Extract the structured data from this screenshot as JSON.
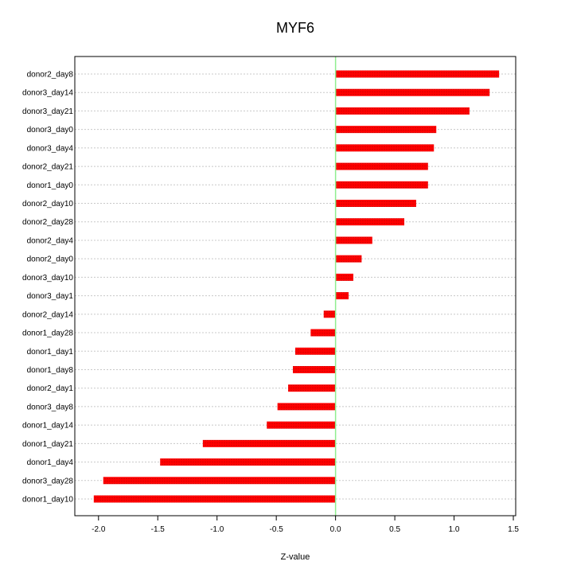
{
  "chart_data": {
    "type": "bar",
    "orientation": "horizontal",
    "title": "MYF6",
    "xlabel": "Z-value",
    "ylabel": "",
    "xlim": [
      -2.2,
      1.52
    ],
    "xticks": [
      -2.0,
      -1.5,
      -1.0,
      -0.5,
      0.0,
      0.5,
      1.0,
      1.5
    ],
    "xtick_labels": [
      "-2.0",
      "-1.5",
      "-1.0",
      "-0.5",
      "0.0",
      "0.5",
      "1.0",
      "1.5"
    ],
    "grid": "horizontal dotted",
    "categories": [
      "donor2_day8",
      "donor3_day14",
      "donor3_day21",
      "donor3_day0",
      "donor3_day4",
      "donor2_day21",
      "donor1_day0",
      "donor2_day10",
      "donor2_day28",
      "donor2_day4",
      "donor2_day0",
      "donor3_day10",
      "donor3_day1",
      "donor2_day14",
      "donor1_day28",
      "donor1_day1",
      "donor1_day8",
      "donor2_day1",
      "donor3_day8",
      "donor1_day14",
      "donor1_day21",
      "donor1_day4",
      "donor3_day28",
      "donor1_day10"
    ],
    "values": [
      1.38,
      1.3,
      1.13,
      0.85,
      0.83,
      0.78,
      0.78,
      0.68,
      0.58,
      0.31,
      0.22,
      0.15,
      0.11,
      -0.1,
      -0.21,
      -0.34,
      -0.36,
      -0.4,
      -0.49,
      -0.58,
      -1.12,
      -1.48,
      -1.96,
      -2.04
    ],
    "colors": {
      "bar": "#ff0000",
      "bar_stripe": "#b30000",
      "zero_line": "#90ee90",
      "grid": "#c8c8c8",
      "frame": "#000000"
    }
  }
}
